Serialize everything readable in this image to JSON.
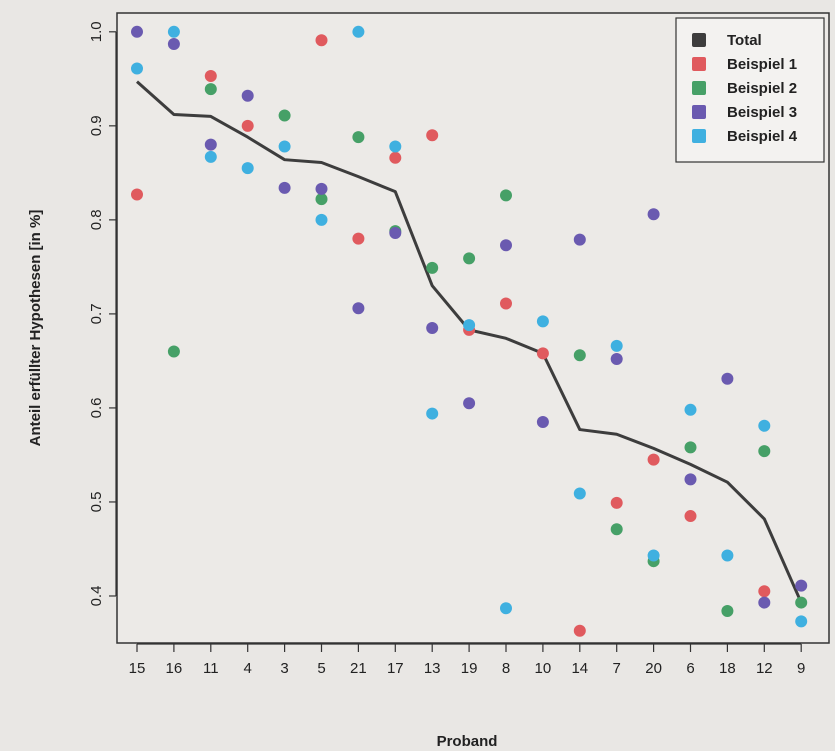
{
  "chart_data": {
    "type": "scatter",
    "xlabel": "Proband",
    "ylabel": "Anteil erfüllter Hypothesen [in %]",
    "ylim": [
      0.35,
      1.02
    ],
    "yticks": [
      0.4,
      0.5,
      0.6,
      0.7,
      0.8,
      0.9,
      1.0
    ],
    "ytick_labels": [
      "0.4",
      "0.5",
      "0.6",
      "0.7",
      "0.8",
      "0.9",
      "1.0"
    ],
    "categories": [
      "15",
      "16",
      "11",
      "4",
      "3",
      "5",
      "21",
      "17",
      "13",
      "19",
      "8",
      "10",
      "14",
      "7",
      "20",
      "6",
      "18",
      "12",
      "9"
    ],
    "legend_position": "top-right",
    "series": [
      {
        "name": "Total",
        "kind": "line",
        "color": "#3d3d3d",
        "values": [
          0.947,
          0.912,
          0.91,
          0.888,
          0.864,
          0.861,
          0.846,
          0.83,
          0.73,
          0.683,
          0.674,
          0.658,
          0.577,
          0.572,
          0.557,
          0.54,
          0.521,
          0.482,
          0.393
        ]
      },
      {
        "name": "Beispiel 1",
        "kind": "points",
        "color": "#e05a5e",
        "values": [
          0.827,
          null,
          0.953,
          0.9,
          null,
          0.991,
          0.78,
          0.866,
          0.89,
          0.683,
          0.711,
          0.658,
          0.363,
          0.499,
          0.545,
          0.485,
          null,
          0.405,
          null
        ]
      },
      {
        "name": "Beispiel 2",
        "kind": "points",
        "color": "#46a067",
        "values": [
          null,
          0.66,
          0.939,
          null,
          0.911,
          0.822,
          0.888,
          0.788,
          0.749,
          0.759,
          0.826,
          null,
          0.656,
          0.471,
          0.437,
          0.558,
          0.384,
          0.554,
          0.393
        ]
      },
      {
        "name": "Beispiel 3",
        "kind": "points",
        "color": "#6a5ab0",
        "values": [
          1.0,
          0.987,
          0.88,
          0.932,
          0.834,
          0.833,
          0.706,
          0.786,
          0.685,
          0.605,
          0.773,
          0.585,
          0.779,
          0.652,
          0.806,
          0.524,
          0.631,
          0.393,
          0.411
        ]
      },
      {
        "name": "Beispiel 4",
        "kind": "points",
        "color": "#3fb0e0",
        "values": [
          0.961,
          1.0,
          0.867,
          0.855,
          0.878,
          0.8,
          1.0,
          0.878,
          0.594,
          0.688,
          0.387,
          0.692,
          0.509,
          0.666,
          0.443,
          0.598,
          0.443,
          0.581,
          0.373
        ]
      }
    ]
  }
}
